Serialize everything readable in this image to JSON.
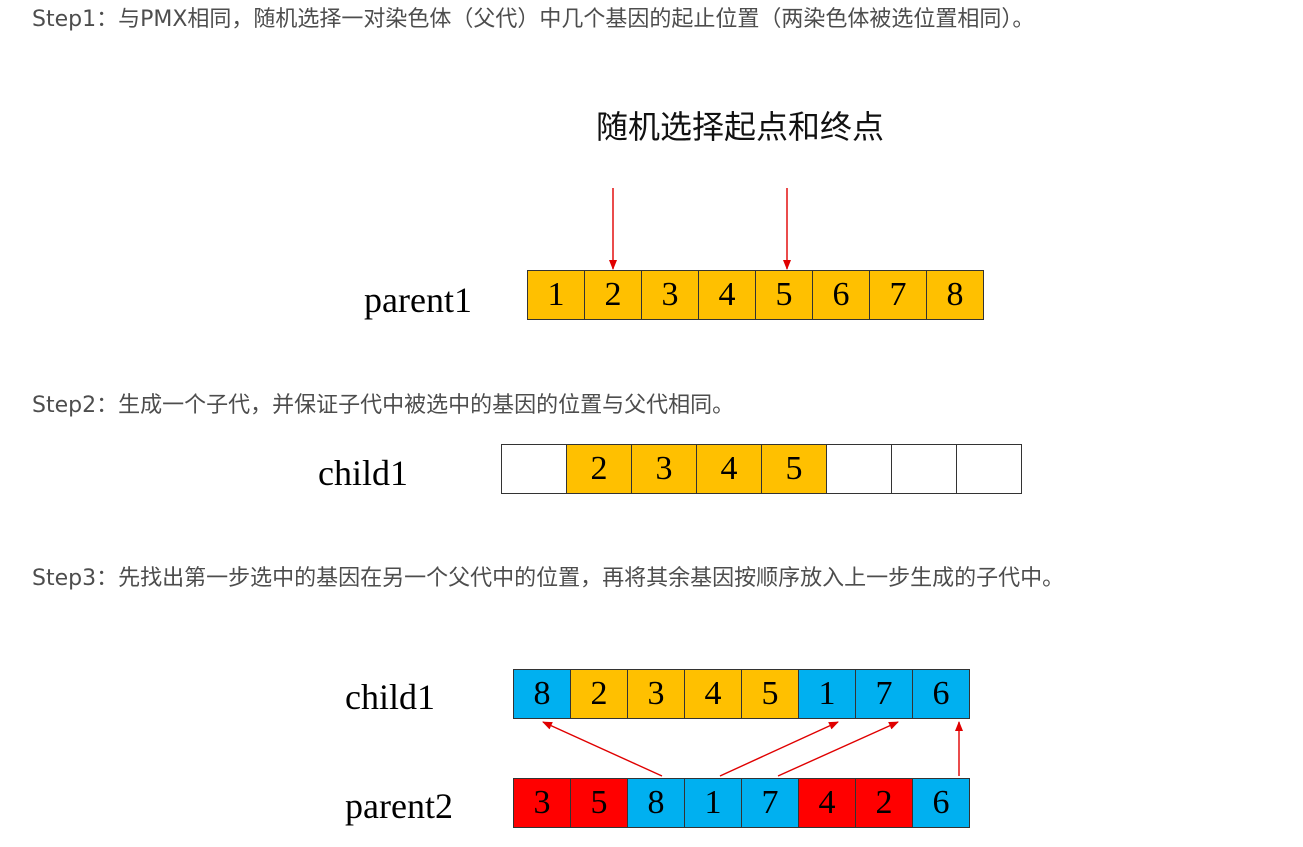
{
  "steps": {
    "step1": "Step1：与PMX相同，随机选择一对染色体（父代）中几个基因的起止位置（两染色体被选位置相同）。",
    "step2": "Step2：生成一个子代，并保证子代中被选中的基因的位置与父代相同。",
    "step3": "Step3：先找出第一步选中的基因在另一个父代中的位置，再将其余基因按顺序放入上一步生成的子代中。"
  },
  "diagram": {
    "title": "随机选择起点和终点",
    "parent1": {
      "label": "parent1",
      "genes": [
        "1",
        "2",
        "3",
        "4",
        "5",
        "6",
        "7",
        "8"
      ],
      "colors": [
        "o",
        "o",
        "o",
        "o",
        "o",
        "o",
        "o",
        "o"
      ]
    },
    "child1_step2": {
      "label": "child1",
      "genes": [
        "",
        "2",
        "3",
        "4",
        "5",
        "",
        "",
        ""
      ],
      "colors": [
        "w",
        "o",
        "o",
        "o",
        "o",
        "w",
        "w",
        "w"
      ]
    },
    "child1_step3": {
      "label": "child1",
      "genes": [
        "8",
        "2",
        "3",
        "4",
        "5",
        "1",
        "7",
        "6"
      ],
      "colors": [
        "b",
        "o",
        "o",
        "o",
        "o",
        "b",
        "b",
        "b"
      ]
    },
    "parent2": {
      "label": "parent2",
      "genes": [
        "3",
        "5",
        "8",
        "1",
        "7",
        "4",
        "2",
        "6"
      ],
      "colors": [
        "r",
        "r",
        "b",
        "b",
        "b",
        "r",
        "r",
        "b"
      ]
    }
  },
  "colors": {
    "orange": "#ffc000",
    "blue": "#00b0f0",
    "red": "#ff0000",
    "arrow": "#e00000"
  }
}
